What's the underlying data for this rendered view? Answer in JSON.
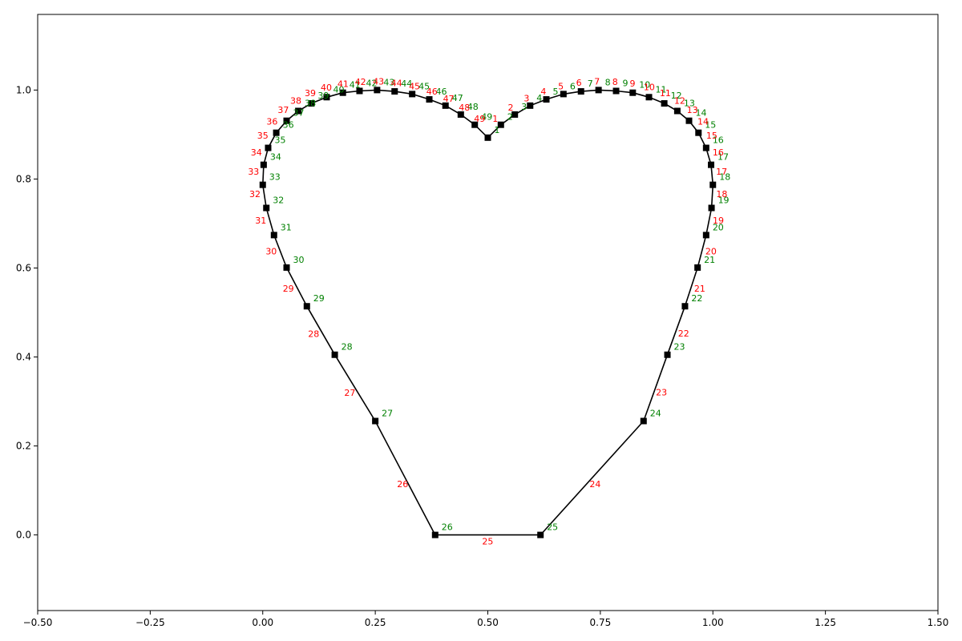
{
  "chart_data": {
    "type": "line",
    "title": "",
    "xlabel": "",
    "ylabel": "",
    "xlim": [
      -0.5,
      1.5
    ],
    "ylim": [
      -0.17,
      1.17
    ],
    "grid": false,
    "legend": "none",
    "x_ticks": [
      -0.5,
      -0.25,
      0.0,
      0.25,
      0.5,
      0.75,
      1.0,
      1.25,
      1.5
    ],
    "x_tick_labels": [
      "−0.50",
      "−0.25",
      "0.00",
      "0.25",
      "0.50",
      "0.75",
      "1.00",
      "1.25",
      "1.50"
    ],
    "y_ticks": [
      0.0,
      0.2,
      0.4,
      0.6,
      0.8,
      1.0
    ],
    "y_tick_labels": [
      "0.0",
      "0.2",
      "0.4",
      "0.6",
      "0.8",
      "1.0"
    ],
    "line_color": "#000000",
    "marker": "square",
    "marker_color": "#000000",
    "vertex_label_color": "#008000",
    "edge_label_color": "#ff0000",
    "vertices": [
      {
        "label": "1",
        "x": 0.5,
        "y": 0.893
      },
      {
        "label": "2",
        "x": 0.529,
        "y": 0.922
      },
      {
        "label": "3",
        "x": 0.56,
        "y": 0.945
      },
      {
        "label": "4",
        "x": 0.594,
        "y": 0.965
      },
      {
        "label": "5",
        "x": 0.63,
        "y": 0.979
      },
      {
        "label": "6",
        "x": 0.668,
        "y": 0.991
      },
      {
        "label": "7",
        "x": 0.707,
        "y": 0.997
      },
      {
        "label": "8",
        "x": 0.746,
        "y": 1.0
      },
      {
        "label": "9",
        "x": 0.785,
        "y": 0.998
      },
      {
        "label": "10",
        "x": 0.822,
        "y": 0.994
      },
      {
        "label": "11",
        "x": 0.858,
        "y": 0.984
      },
      {
        "label": "12",
        "x": 0.892,
        "y": 0.97
      },
      {
        "label": "13",
        "x": 0.921,
        "y": 0.953
      },
      {
        "label": "14",
        "x": 0.947,
        "y": 0.931
      },
      {
        "label": "15",
        "x": 0.968,
        "y": 0.904
      },
      {
        "label": "16",
        "x": 0.985,
        "y": 0.87
      },
      {
        "label": "17",
        "x": 0.996,
        "y": 0.832
      },
      {
        "label": "18",
        "x": 1.0,
        "y": 0.787
      },
      {
        "label": "19",
        "x": 0.997,
        "y": 0.735
      },
      {
        "label": "20",
        "x": 0.985,
        "y": 0.674
      },
      {
        "label": "21",
        "x": 0.966,
        "y": 0.601
      },
      {
        "label": "22",
        "x": 0.938,
        "y": 0.514
      },
      {
        "label": "23",
        "x": 0.899,
        "y": 0.405
      },
      {
        "label": "24",
        "x": 0.846,
        "y": 0.256
      },
      {
        "label": "25",
        "x": 0.617,
        "y": 0.0
      },
      {
        "label": "26",
        "x": 0.383,
        "y": 0.0
      },
      {
        "label": "27",
        "x": 0.25,
        "y": 0.256
      },
      {
        "label": "28",
        "x": 0.16,
        "y": 0.405
      },
      {
        "label": "29",
        "x": 0.098,
        "y": 0.514
      },
      {
        "label": "30",
        "x": 0.053,
        "y": 0.601
      },
      {
        "label": "31",
        "x": 0.025,
        "y": 0.674
      },
      {
        "label": "32",
        "x": 0.008,
        "y": 0.735
      },
      {
        "label": "33",
        "x": 0.0,
        "y": 0.787
      },
      {
        "label": "34",
        "x": 0.002,
        "y": 0.832
      },
      {
        "label": "35",
        "x": 0.012,
        "y": 0.87
      },
      {
        "label": "36",
        "x": 0.03,
        "y": 0.904
      },
      {
        "label": "37",
        "x": 0.053,
        "y": 0.931
      },
      {
        "label": "38",
        "x": 0.079,
        "y": 0.953
      },
      {
        "label": "39",
        "x": 0.108,
        "y": 0.97
      },
      {
        "label": "40",
        "x": 0.142,
        "y": 0.984
      },
      {
        "label": "41",
        "x": 0.178,
        "y": 0.994
      },
      {
        "label": "42",
        "x": 0.215,
        "y": 0.998
      },
      {
        "label": "43",
        "x": 0.254,
        "y": 1.0
      },
      {
        "label": "44",
        "x": 0.293,
        "y": 0.997
      },
      {
        "label": "45",
        "x": 0.332,
        "y": 0.991
      },
      {
        "label": "46",
        "x": 0.37,
        "y": 0.979
      },
      {
        "label": "47",
        "x": 0.406,
        "y": 0.965
      },
      {
        "label": "48",
        "x": 0.44,
        "y": 0.945
      },
      {
        "label": "49",
        "x": 0.471,
        "y": 0.922
      }
    ],
    "edge_labels": [
      "1",
      "2",
      "3",
      "4",
      "5",
      "6",
      "7",
      "8",
      "9",
      "10",
      "11",
      "12",
      "13",
      "14",
      "15",
      "16",
      "17",
      "18",
      "19",
      "20",
      "21",
      "22",
      "23",
      "24",
      "25",
      "26",
      "27",
      "28",
      "29",
      "30",
      "31",
      "32",
      "33",
      "34",
      "35",
      "36",
      "37",
      "38",
      "39",
      "40",
      "41",
      "42",
      "43",
      "44",
      "45",
      "46",
      "47",
      "48",
      "49"
    ]
  }
}
